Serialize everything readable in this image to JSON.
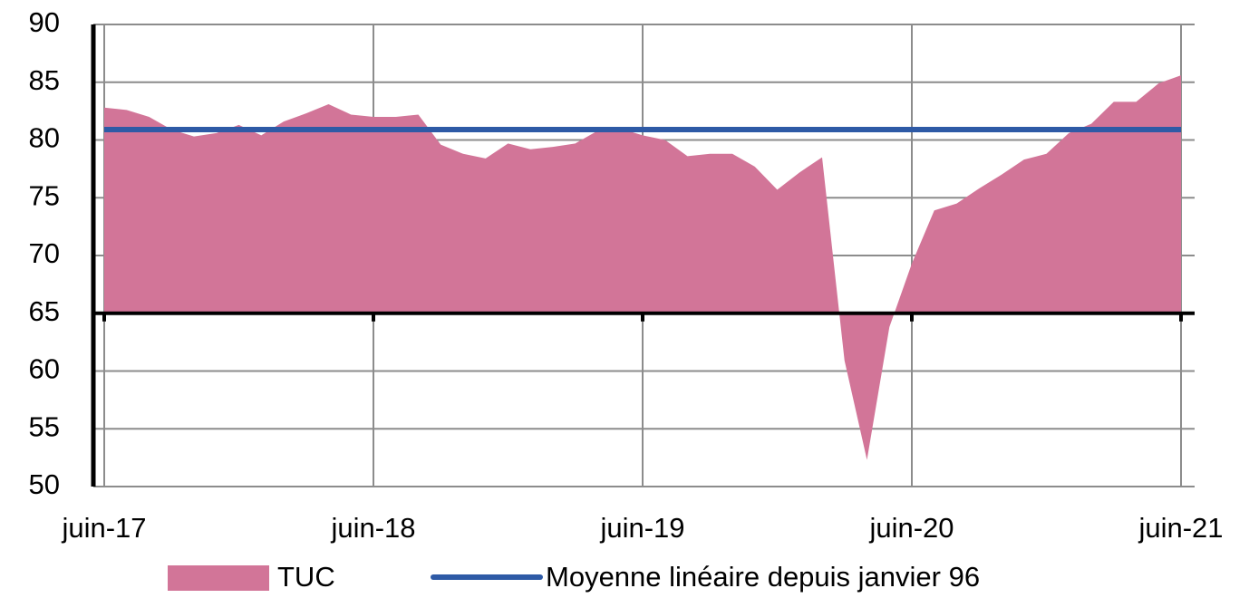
{
  "chart_data": {
    "type": "area",
    "categories": [
      "juin-17",
      null,
      null,
      null,
      null,
      null,
      null,
      null,
      null,
      null,
      null,
      null,
      "juin-18",
      null,
      null,
      null,
      null,
      null,
      null,
      null,
      null,
      null,
      null,
      null,
      "juin-19",
      null,
      null,
      null,
      null,
      null,
      null,
      null,
      null,
      null,
      null,
      null,
      "juin-20",
      null,
      null,
      null,
      null,
      null,
      null,
      null,
      null,
      null,
      null,
      null,
      "juin-21"
    ],
    "series": [
      {
        "name": "TUC",
        "color": "#d27598",
        "kind": "area",
        "values": [
          82.8,
          82.6,
          82.0,
          80.9,
          80.3,
          80.6,
          81.3,
          80.4,
          81.6,
          82.3,
          83.1,
          82.2,
          82.0,
          82.0,
          82.2,
          79.6,
          78.8,
          78.4,
          79.7,
          79.2,
          79.4,
          79.7,
          80.8,
          81.0,
          80.4,
          80.0,
          78.6,
          78.8,
          78.8,
          77.7,
          75.7,
          77.2,
          78.5,
          60.9,
          52.3,
          63.8,
          69.3,
          73.9,
          74.5,
          75.8,
          77.0,
          78.3,
          78.8,
          80.6,
          81.4,
          83.3,
          83.3,
          84.9,
          85.6
        ]
      },
      {
        "name": "Moyenne linéaire depuis janvier 96",
        "color": "#2e5aa6",
        "kind": "line",
        "values": [
          80.9,
          80.9,
          80.9,
          80.9,
          80.9,
          80.9,
          80.9,
          80.9,
          80.9,
          80.9,
          80.9,
          80.9,
          80.9,
          80.9,
          80.9,
          80.9,
          80.9,
          80.9,
          80.9,
          80.9,
          80.9,
          80.9,
          80.9,
          80.9,
          80.9,
          80.9,
          80.9,
          80.9,
          80.9,
          80.9,
          80.9,
          80.9,
          80.9,
          80.9,
          80.9,
          80.9,
          80.9,
          80.9,
          80.9,
          80.9,
          80.9,
          80.9,
          80.9,
          80.9,
          80.9,
          80.9,
          80.9,
          80.9,
          80.9
        ]
      }
    ],
    "ylim": [
      50,
      90
    ],
    "yticks": [
      50,
      55,
      60,
      65,
      70,
      75,
      80,
      85,
      90
    ],
    "x_axis_crosses": 65,
    "grid": true,
    "legend": "bottom"
  }
}
